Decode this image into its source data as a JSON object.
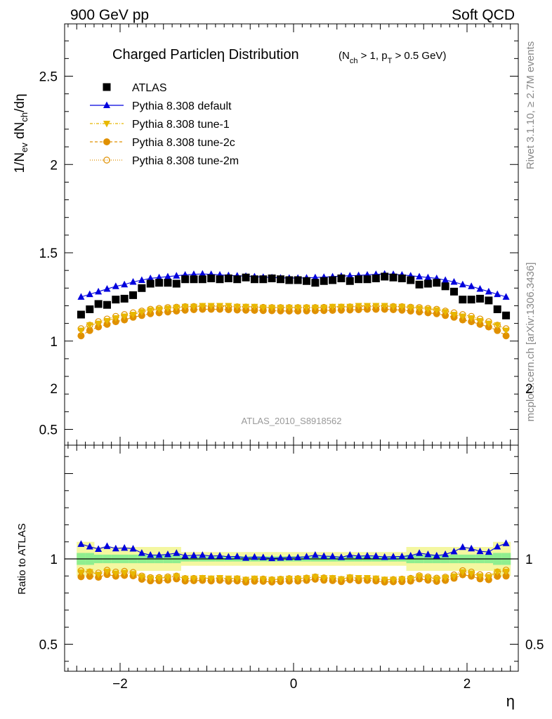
{
  "header": {
    "left": "900 GeV pp",
    "right": "Soft QCD"
  },
  "side_labels": {
    "top": "Rivet 3.1.10, ≥ 2.7M events",
    "bottom": "mcplots.cern.ch [arXiv:1306.3436]"
  },
  "chart_data": {
    "type": "scatter",
    "title": "Charged Particleη Distribution",
    "title_cuts": "(N_ch > 1, p_T > 0.5 GeV)",
    "analysis_id": "ATLAS_2010_S8918562",
    "xlabel": "η",
    "ylabel": "1/N_ev dN_ch/dη",
    "ratio_ylabel": "Ratio to ATLAS",
    "xlim": [
      -2.6,
      2.6
    ],
    "ylim": [
      0.4,
      2.8
    ],
    "ratio_ylim": [
      0.3,
      2.3
    ],
    "x_ticks": [
      -2,
      0,
      2
    ],
    "y_ticks": [
      0.5,
      1,
      1.5,
      2,
      2.5
    ],
    "ratio_y_ticks": [
      0.5,
      1,
      2
    ],
    "legend_position": "top-left",
    "x": [
      -2.45,
      -2.35,
      -2.25,
      -2.15,
      -2.05,
      -1.95,
      -1.85,
      -1.75,
      -1.65,
      -1.55,
      -1.45,
      -1.35,
      -1.25,
      -1.15,
      -1.05,
      -0.95,
      -0.85,
      -0.75,
      -0.65,
      -0.55,
      -0.45,
      -0.35,
      -0.25,
      -0.15,
      -0.05,
      0.05,
      0.15,
      0.25,
      0.35,
      0.45,
      0.55,
      0.65,
      0.75,
      0.85,
      0.95,
      1.05,
      1.15,
      1.25,
      1.35,
      1.45,
      1.55,
      1.65,
      1.75,
      1.85,
      1.95,
      2.05,
      2.15,
      2.25,
      2.35,
      2.45
    ],
    "series": [
      {
        "name": "ATLAS",
        "color": "#000000",
        "marker": "square",
        "values": [
          1.15,
          1.18,
          1.21,
          1.205,
          1.235,
          1.24,
          1.26,
          1.3,
          1.325,
          1.33,
          1.33,
          1.325,
          1.35,
          1.35,
          1.35,
          1.355,
          1.35,
          1.355,
          1.35,
          1.36,
          1.35,
          1.35,
          1.355,
          1.35,
          1.345,
          1.345,
          1.34,
          1.33,
          1.34,
          1.345,
          1.355,
          1.34,
          1.35,
          1.35,
          1.355,
          1.365,
          1.36,
          1.355,
          1.345,
          1.32,
          1.325,
          1.33,
          1.31,
          1.28,
          1.235,
          1.235,
          1.24,
          1.23,
          1.18,
          1.145
        ],
        "ratio_band": {
          "inner": [
            0.035,
            0.035,
            0.025,
            0.025,
            0.025,
            0.025,
            0.025,
            0.025,
            0.025,
            0.025,
            0.025,
            0.025,
            0.015,
            0.015,
            0.015,
            0.015,
            0.015,
            0.015,
            0.015,
            0.015,
            0.015,
            0.015,
            0.015,
            0.015,
            0.015,
            0.015,
            0.015,
            0.015,
            0.015,
            0.015,
            0.015,
            0.015,
            0.015,
            0.015,
            0.015,
            0.015,
            0.015,
            0.015,
            0.025,
            0.025,
            0.025,
            0.025,
            0.025,
            0.025,
            0.025,
            0.025,
            0.025,
            0.025,
            0.035,
            0.035
          ],
          "outer": [
            0.1,
            0.1,
            0.07,
            0.07,
            0.07,
            0.07,
            0.07,
            0.07,
            0.07,
            0.07,
            0.07,
            0.07,
            0.04,
            0.04,
            0.04,
            0.04,
            0.04,
            0.04,
            0.04,
            0.04,
            0.04,
            0.04,
            0.04,
            0.04,
            0.04,
            0.04,
            0.04,
            0.04,
            0.04,
            0.04,
            0.04,
            0.04,
            0.04,
            0.04,
            0.04,
            0.04,
            0.04,
            0.04,
            0.07,
            0.07,
            0.07,
            0.07,
            0.07,
            0.07,
            0.07,
            0.07,
            0.07,
            0.07,
            0.1,
            0.1
          ]
        }
      },
      {
        "name": "Pythia 8.308 default",
        "color": "#0000dd",
        "marker": "triangle-up",
        "line": "solid",
        "values": [
          1.25,
          1.265,
          1.28,
          1.295,
          1.31,
          1.32,
          1.335,
          1.345,
          1.355,
          1.36,
          1.365,
          1.37,
          1.375,
          1.378,
          1.38,
          1.378,
          1.375,
          1.372,
          1.37,
          1.368,
          1.365,
          1.362,
          1.36,
          1.358,
          1.357,
          1.357,
          1.358,
          1.36,
          1.362,
          1.365,
          1.368,
          1.37,
          1.372,
          1.375,
          1.378,
          1.38,
          1.378,
          1.375,
          1.37,
          1.365,
          1.36,
          1.355,
          1.345,
          1.335,
          1.32,
          1.31,
          1.295,
          1.28,
          1.265,
          1.25
        ]
      },
      {
        "name": "Pythia 8.308 tune-1",
        "color": "#e8b800",
        "marker": "triangle-down",
        "line": "dash-dot",
        "values": [
          1.06,
          1.09,
          1.1,
          1.115,
          1.13,
          1.14,
          1.15,
          1.165,
          1.175,
          1.18,
          1.185,
          1.19,
          1.195,
          1.195,
          1.2,
          1.2,
          1.2,
          1.2,
          1.195,
          1.195,
          1.195,
          1.19,
          1.19,
          1.19,
          1.19,
          1.19,
          1.19,
          1.19,
          1.19,
          1.195,
          1.195,
          1.195,
          1.2,
          1.2,
          1.2,
          1.2,
          1.195,
          1.195,
          1.19,
          1.185,
          1.18,
          1.175,
          1.165,
          1.15,
          1.14,
          1.13,
          1.115,
          1.1,
          1.09,
          1.06
        ]
      },
      {
        "name": "Pythia 8.308 tune-2c",
        "color": "#e09000",
        "marker": "circle",
        "line": "dashed",
        "values": [
          1.03,
          1.06,
          1.08,
          1.095,
          1.11,
          1.12,
          1.135,
          1.145,
          1.155,
          1.16,
          1.165,
          1.17,
          1.175,
          1.178,
          1.18,
          1.18,
          1.18,
          1.178,
          1.176,
          1.175,
          1.174,
          1.173,
          1.172,
          1.171,
          1.17,
          1.17,
          1.171,
          1.172,
          1.173,
          1.174,
          1.175,
          1.176,
          1.178,
          1.18,
          1.18,
          1.18,
          1.178,
          1.175,
          1.17,
          1.165,
          1.16,
          1.155,
          1.145,
          1.135,
          1.12,
          1.11,
          1.095,
          1.08,
          1.06,
          1.03
        ]
      },
      {
        "name": "Pythia 8.308 tune-2m",
        "color": "#e09000",
        "marker": "circle-open",
        "line": "dotted",
        "values": [
          1.07,
          1.09,
          1.11,
          1.125,
          1.14,
          1.15,
          1.16,
          1.17,
          1.18,
          1.185,
          1.19,
          1.192,
          1.195,
          1.196,
          1.197,
          1.197,
          1.196,
          1.195,
          1.194,
          1.193,
          1.192,
          1.191,
          1.19,
          1.19,
          1.19,
          1.19,
          1.19,
          1.19,
          1.191,
          1.192,
          1.193,
          1.194,
          1.195,
          1.196,
          1.197,
          1.197,
          1.196,
          1.195,
          1.192,
          1.19,
          1.185,
          1.18,
          1.17,
          1.16,
          1.15,
          1.14,
          1.125,
          1.11,
          1.09,
          1.07
        ]
      }
    ]
  }
}
